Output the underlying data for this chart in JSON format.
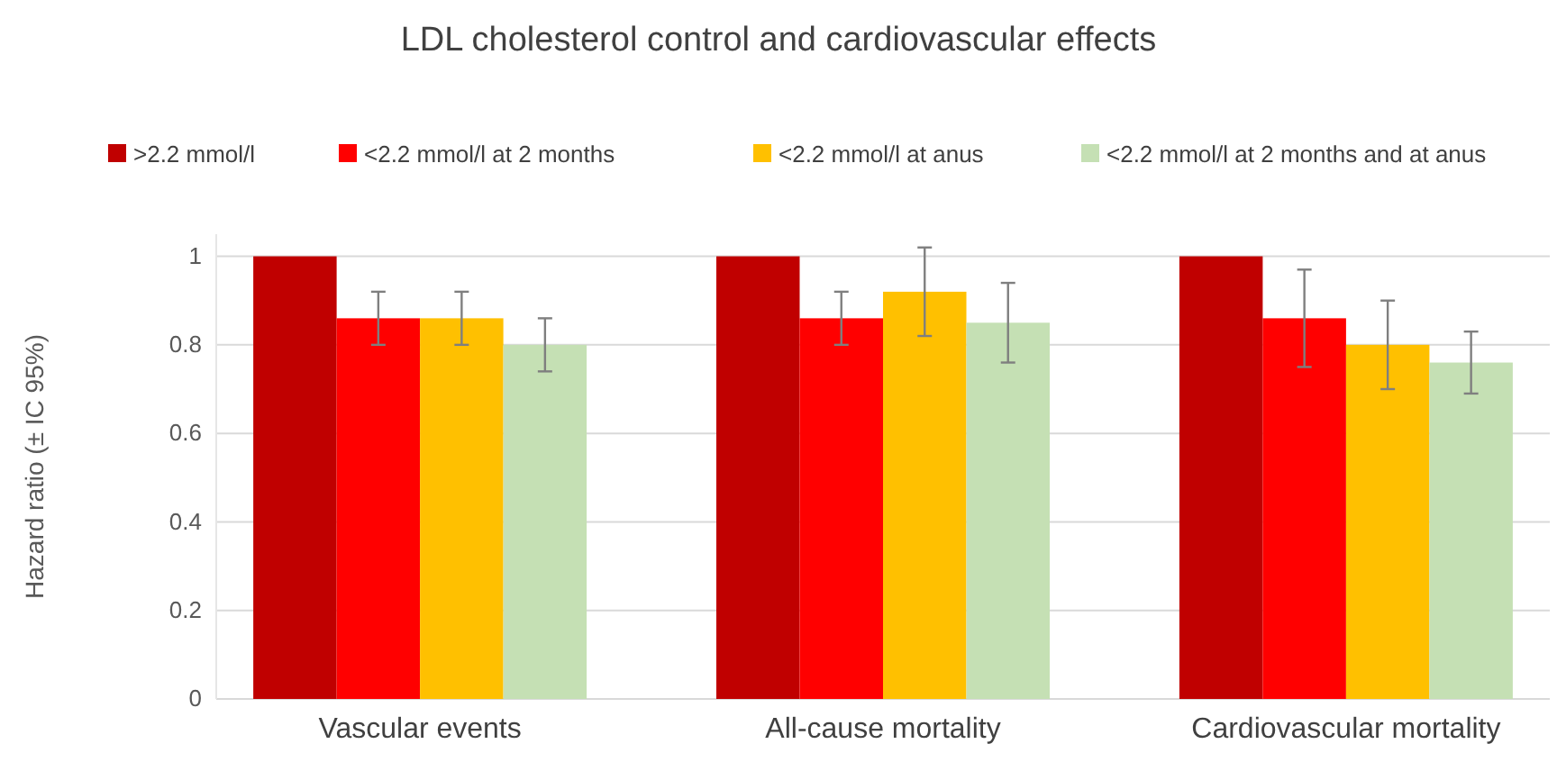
{
  "chart_data": {
    "type": "bar",
    "title": "LDL cholesterol control and cardiovascular effects",
    "ylabel": "Hazard ratio (± IC 95%)",
    "categories": [
      "Vascular events",
      "All-cause mortality",
      "Cardiovascular mortality"
    ],
    "series": [
      {
        "name": ">2.2 mmol/l",
        "color": "#c00000",
        "values": [
          1,
          1,
          1
        ]
      },
      {
        "name": "<2.2 mmol/l at 2 months",
        "color": "#ff0000",
        "values": [
          0.86,
          0.86,
          0.86
        ],
        "errors": [
          [
            0.8,
            0.92
          ],
          [
            0.8,
            0.92
          ],
          [
            0.75,
            0.97
          ]
        ]
      },
      {
        "name": "<2.2 mmol/l at anus",
        "color": "#ffc000",
        "values": [
          0.86,
          0.92,
          0.8
        ],
        "errors": [
          [
            0.8,
            0.92
          ],
          [
            0.82,
            1.02
          ],
          [
            0.7,
            0.9
          ]
        ]
      },
      {
        "name": "<2.2 mmol/l at 2 months and at anus",
        "color": "#c5e0b4",
        "values": [
          0.8,
          0.85,
          0.76
        ],
        "errors": [
          [
            0.74,
            0.86
          ],
          [
            0.76,
            0.94
          ],
          [
            0.69,
            0.83
          ]
        ]
      }
    ],
    "ylim": [
      0,
      1.05
    ],
    "yticks": [
      0,
      0.2,
      0.4,
      0.6,
      0.8,
      1
    ],
    "grid": "y",
    "legend": "top"
  }
}
